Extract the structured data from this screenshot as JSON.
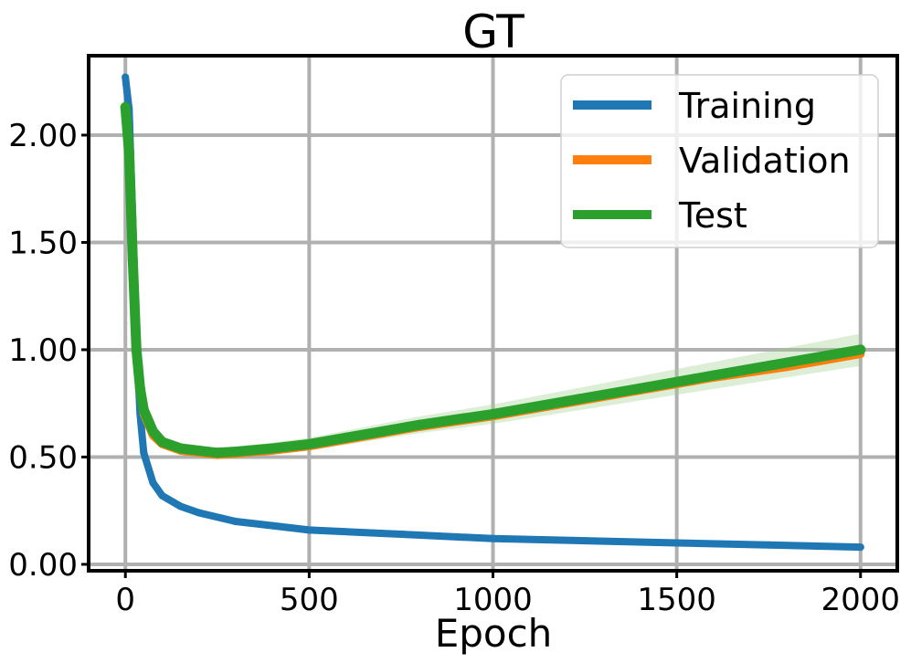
{
  "chart_data": {
    "type": "line",
    "title": "GT",
    "xlabel": "Epoch",
    "ylabel": "",
    "xlim": [
      -100,
      2100
    ],
    "ylim": [
      -0.03,
      2.37
    ],
    "grid": true,
    "legend_position": "top-right",
    "x_ticks": [
      0,
      500,
      1000,
      1500,
      2000
    ],
    "x_tick_labels": [
      "0",
      "500",
      "1000",
      "1500",
      "2000"
    ],
    "y_ticks": [
      0.0,
      0.5,
      1.0,
      1.5,
      2.0
    ],
    "y_tick_labels": [
      "0.00",
      "0.50",
      "1.00",
      "1.50",
      "2.00"
    ],
    "series": [
      {
        "name": "Training",
        "color": "#1f77b4",
        "x": [
          0,
          10,
          20,
          30,
          40,
          50,
          75,
          100,
          150,
          200,
          300,
          400,
          500,
          750,
          1000,
          1250,
          1500,
          1750,
          2000
        ],
        "values": [
          2.27,
          2.12,
          1.6,
          1.05,
          0.7,
          0.52,
          0.38,
          0.32,
          0.27,
          0.24,
          0.2,
          0.18,
          0.16,
          0.14,
          0.12,
          0.11,
          0.1,
          0.09,
          0.08
        ]
      },
      {
        "name": "Validation",
        "color": "#ff7f0e",
        "x": [
          0,
          10,
          20,
          30,
          40,
          50,
          75,
          100,
          150,
          200,
          250,
          300,
          400,
          500,
          600,
          700,
          800,
          1000,
          1200,
          1400,
          1600,
          1800,
          2000
        ],
        "values": [
          2.1,
          1.9,
          1.4,
          0.98,
          0.8,
          0.7,
          0.6,
          0.56,
          0.53,
          0.52,
          0.51,
          0.515,
          0.53,
          0.55,
          0.58,
          0.61,
          0.64,
          0.69,
          0.75,
          0.81,
          0.87,
          0.92,
          0.98
        ]
      },
      {
        "name": "Test",
        "color": "#2ca02c",
        "x": [
          0,
          10,
          20,
          30,
          40,
          50,
          75,
          100,
          150,
          200,
          250,
          300,
          400,
          500,
          600,
          700,
          800,
          1000,
          1200,
          1400,
          1600,
          1800,
          2000
        ],
        "values": [
          2.13,
          1.92,
          1.42,
          1.0,
          0.82,
          0.72,
          0.62,
          0.57,
          0.54,
          0.53,
          0.52,
          0.525,
          0.54,
          0.56,
          0.59,
          0.62,
          0.65,
          0.7,
          0.76,
          0.82,
          0.88,
          0.94,
          1.0
        ]
      }
    ]
  }
}
